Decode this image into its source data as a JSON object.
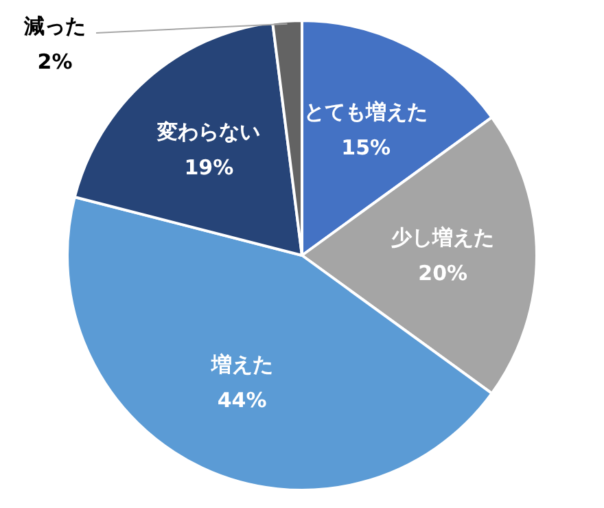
{
  "chart_data": {
    "type": "pie",
    "categories": [
      "とても増えた",
      "少し増えた",
      "増えた",
      "変わらない",
      "減った"
    ],
    "values": [
      15,
      20,
      44,
      19,
      2
    ],
    "value_labels": [
      "15%",
      "20%",
      "44%",
      "19%",
      "2%"
    ],
    "colors": [
      "#4472c4",
      "#a5a5a5",
      "#5b9bd5",
      "#264478",
      "#636363"
    ],
    "legend": false
  }
}
